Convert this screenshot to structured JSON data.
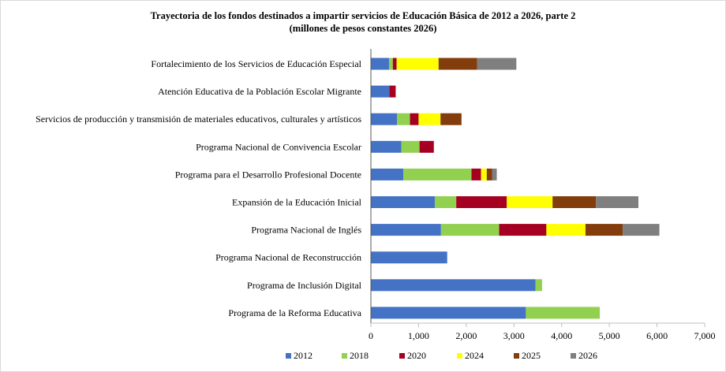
{
  "chart_data": {
    "type": "bar",
    "orientation": "horizontal",
    "stacked": true,
    "title": "Trayectoria de los fondos destinados a impartir servicios de Educación Básica de 2012 a 2026, parte 2",
    "subtitle": "(millones de pesos constantes 2026)",
    "xlabel": "",
    "ylabel": "",
    "xlim": [
      0,
      7000
    ],
    "xticks": [
      0,
      1000,
      2000,
      3000,
      4000,
      5000,
      6000,
      7000
    ],
    "xtick_labels": [
      "0",
      "1,000",
      "2,000",
      "3,000",
      "4,000",
      "5,000",
      "6,000",
      "7,000"
    ],
    "grid": false,
    "legend_position": "bottom",
    "categories": [
      "Fortalecimiento de los Servicios de Educación Especial",
      "Atención Educativa de la Población Escolar Migrante",
      "Servicios de producción y transmisión de materiales educativos, culturales y artísticos",
      "Programa Nacional de Convivencia Escolar",
      "Programa para el Desarrollo Profesional Docente",
      "Expansión de la Educación Inicial",
      "Programa Nacional de Inglés",
      "Programa Nacional de Reconstrucción",
      "Programa de Inclusión Digital",
      "Programa de la Reforma Educativa"
    ],
    "series": [
      {
        "name": "2012",
        "color": "#4472C4",
        "values": [
          380,
          390,
          550,
          640,
          680,
          1340,
          1470,
          1600,
          3450,
          3250
        ]
      },
      {
        "name": "2018",
        "color": "#92D050",
        "values": [
          80,
          0,
          270,
          380,
          1430,
          450,
          1220,
          0,
          140,
          1550
        ]
      },
      {
        "name": "2020",
        "color": "#A50021",
        "values": [
          80,
          130,
          180,
          300,
          200,
          1060,
          990,
          0,
          0,
          0
        ]
      },
      {
        "name": "2024",
        "color": "#FFFF00",
        "values": [
          880,
          0,
          460,
          0,
          120,
          960,
          820,
          0,
          0,
          0
        ]
      },
      {
        "name": "2025",
        "color": "#833C0B",
        "values": [
          810,
          0,
          440,
          0,
          110,
          910,
          780,
          0,
          0,
          0
        ]
      },
      {
        "name": "2026",
        "color": "#7F7F7F",
        "values": [
          820,
          0,
          0,
          0,
          100,
          890,
          770,
          0,
          0,
          0
        ]
      }
    ]
  }
}
